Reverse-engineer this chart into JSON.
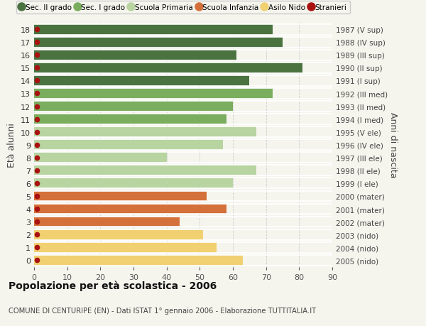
{
  "ages": [
    18,
    17,
    16,
    15,
    14,
    13,
    12,
    11,
    10,
    9,
    8,
    7,
    6,
    5,
    4,
    3,
    2,
    1,
    0
  ],
  "values": [
    72,
    75,
    61,
    81,
    65,
    72,
    60,
    58,
    67,
    57,
    40,
    67,
    60,
    52,
    58,
    44,
    51,
    55,
    63
  ],
  "colors": [
    "#4a7340",
    "#4a7340",
    "#4a7340",
    "#4a7340",
    "#4a7340",
    "#7aad5e",
    "#7aad5e",
    "#7aad5e",
    "#b8d4a0",
    "#b8d4a0",
    "#b8d4a0",
    "#b8d4a0",
    "#b8d4a0",
    "#d4703a",
    "#d4703a",
    "#d4703a",
    "#f0d070",
    "#f0d070",
    "#f0d070"
  ],
  "right_labels": [
    "1987 (V sup)",
    "1988 (IV sup)",
    "1989 (III sup)",
    "1990 (II sup)",
    "1991 (I sup)",
    "1992 (III med)",
    "1993 (II med)",
    "1994 (I med)",
    "1995 (V ele)",
    "1996 (IV ele)",
    "1997 (III ele)",
    "1998 (II ele)",
    "1999 (I ele)",
    "2000 (mater)",
    "2001 (mater)",
    "2002 (mater)",
    "2003 (nido)",
    "2004 (nido)",
    "2005 (nido)"
  ],
  "stranieri_color": "#aa1111",
  "legend_items": [
    {
      "label": "Sec. II grado",
      "color": "#4a7340"
    },
    {
      "label": "Sec. I grado",
      "color": "#7aad5e"
    },
    {
      "label": "Scuola Primaria",
      "color": "#b8d4a0"
    },
    {
      "label": "Scuola Infanzia",
      "color": "#d4703a"
    },
    {
      "label": "Asilo Nido",
      "color": "#f0d070"
    },
    {
      "label": "Stranieri",
      "color": "#aa1111"
    }
  ],
  "ylabel": "Età alunni",
  "right_ylabel": "Anni di nascita",
  "title": "Popolazione per età scolastica - 2006",
  "subtitle": "COMUNE DI CENTURIPE (EN) - Dati ISTAT 1° gennaio 2006 - Elaborazione TUTTITALIA.IT",
  "xlim": [
    0,
    90
  ],
  "xticks": [
    0,
    10,
    20,
    30,
    40,
    50,
    60,
    70,
    80,
    90
  ],
  "background_color": "#f5f5ee",
  "bar_height": 0.82
}
